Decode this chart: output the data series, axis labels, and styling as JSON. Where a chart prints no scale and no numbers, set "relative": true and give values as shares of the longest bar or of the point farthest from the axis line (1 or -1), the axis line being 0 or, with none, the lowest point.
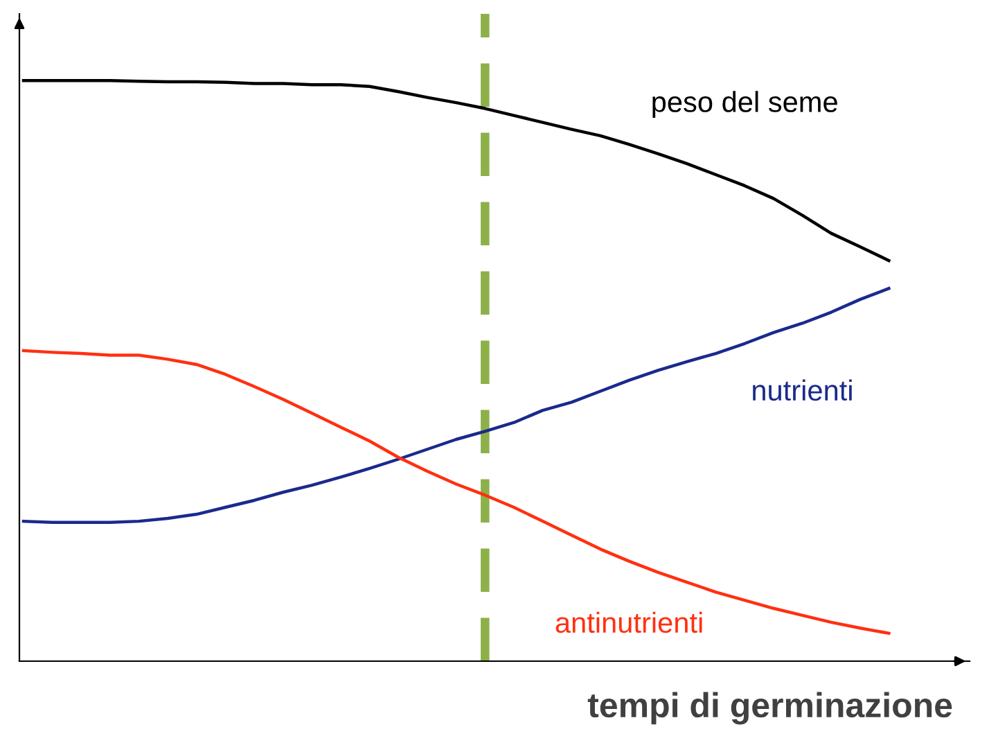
{
  "chart_data": {
    "type": "line",
    "relative": true,
    "xlabel": "tempi di germinazione",
    "categories": [
      null,
      null,
      null,
      null,
      null,
      null,
      null,
      null,
      null,
      null,
      null,
      null,
      null,
      null,
      null,
      null,
      null,
      null,
      null,
      null,
      null,
      null,
      null,
      null,
      null,
      null,
      null,
      null,
      null,
      null,
      null
    ],
    "series": [
      {
        "name": "peso del seme",
        "color": "#000000",
        "values": [
          1.0,
          1.0,
          1.0,
          1.0,
          0.999,
          0.998,
          0.998,
          0.997,
          0.995,
          0.995,
          0.993,
          0.993,
          0.99,
          0.981,
          0.971,
          0.962,
          0.952,
          0.94,
          0.928,
          0.916,
          0.905,
          0.89,
          0.874,
          0.857,
          0.838,
          0.819,
          0.797,
          0.768,
          0.737,
          0.714,
          0.69
        ]
      },
      {
        "name": "nutrienti",
        "color": "#1a2a8c",
        "values": [
          0.241,
          0.239,
          0.239,
          0.239,
          0.241,
          0.246,
          0.253,
          0.265,
          0.277,
          0.291,
          0.303,
          0.317,
          0.332,
          0.348,
          0.365,
          0.382,
          0.396,
          0.411,
          0.432,
          0.446,
          0.465,
          0.484,
          0.501,
          0.516,
          0.53,
          0.547,
          0.566,
          0.582,
          0.601,
          0.623,
          0.642
        ]
      },
      {
        "name": "antinutrienti",
        "color": "#ff3010",
        "values": [
          0.535,
          0.532,
          0.53,
          0.527,
          0.527,
          0.52,
          0.511,
          0.494,
          0.473,
          0.451,
          0.427,
          0.403,
          0.379,
          0.351,
          0.327,
          0.305,
          0.286,
          0.265,
          0.241,
          0.217,
          0.193,
          0.172,
          0.153,
          0.136,
          0.119,
          0.105,
          0.091,
          0.079,
          0.067,
          0.057,
          0.048
        ]
      }
    ],
    "grid": false,
    "legend": false,
    "marker": "none",
    "line_style": "solid"
  }
}
